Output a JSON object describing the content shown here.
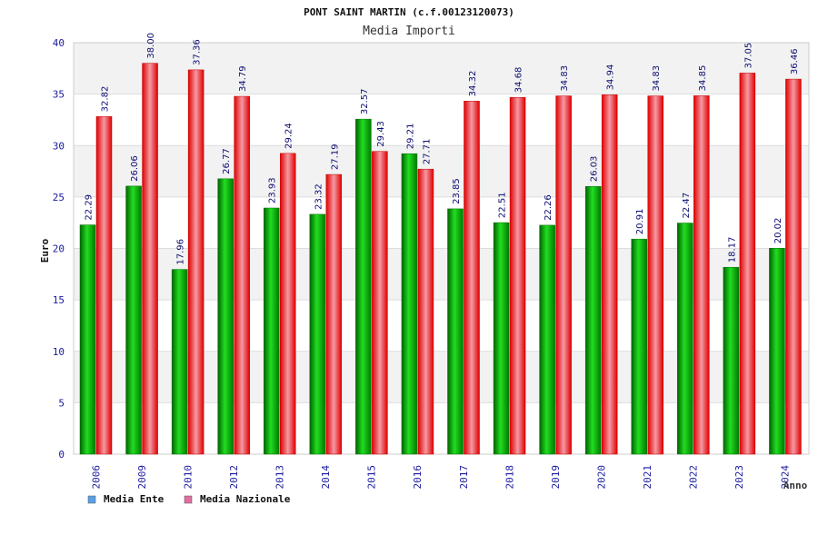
{
  "chart_data": {
    "type": "bar",
    "title": "PONT SAINT MARTIN (c.f.00123120073)",
    "subtitle": "Media Importi",
    "xlabel": "Anno",
    "ylabel": "Euro",
    "ylim": [
      0,
      40
    ],
    "yticks": [
      0,
      5,
      10,
      15,
      20,
      25,
      30,
      35,
      40
    ],
    "grid": true,
    "categories": [
      "2006",
      "2009",
      "2010",
      "2012",
      "2013",
      "2014",
      "2015",
      "2016",
      "2017",
      "2018",
      "2019",
      "2020",
      "2021",
      "2022",
      "2023",
      "2024"
    ],
    "series": [
      {
        "name": "Media Ente",
        "color": "#00c000",
        "legend_color": "#5aa0e6",
        "values": [
          22.29,
          26.06,
          17.96,
          26.77,
          23.93,
          23.32,
          32.57,
          29.21,
          23.85,
          22.51,
          22.26,
          26.03,
          20.91,
          22.47,
          18.17,
          20.02
        ]
      },
      {
        "name": "Media Nazionale",
        "color": "#ee1111",
        "legend_color": "#e070a0",
        "values": [
          32.82,
          38.0,
          37.36,
          34.79,
          29.24,
          27.19,
          29.43,
          27.71,
          34.32,
          34.68,
          34.83,
          34.94,
          34.83,
          34.85,
          37.05,
          36.46
        ]
      }
    ],
    "legend": "bottom-left"
  },
  "colors": {
    "tick_label": "#1a1aa0",
    "value_label": "#0a0a70",
    "band": "#f2f2f2",
    "axis": "#999999"
  }
}
